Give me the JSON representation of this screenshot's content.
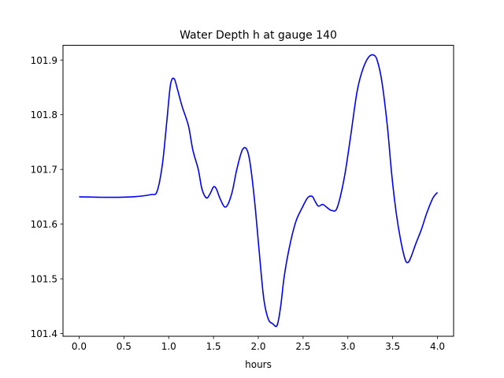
{
  "chart_data": {
    "type": "line",
    "title": "Water Depth h at gauge 140",
    "xlabel": "hours",
    "ylabel": "",
    "xlim": [
      -0.18,
      4.18
    ],
    "ylim": [
      101.395,
      101.927
    ],
    "x_ticks": [
      0.0,
      0.5,
      1.0,
      1.5,
      2.0,
      2.5,
      3.0,
      3.5,
      4.0
    ],
    "x_tick_labels": [
      "0.0",
      "0.5",
      "1.0",
      "1.5",
      "2.0",
      "2.5",
      "3.0",
      "3.5",
      "4.0"
    ],
    "y_ticks": [
      101.4,
      101.5,
      101.6,
      101.7,
      101.8,
      101.9
    ],
    "y_tick_labels": [
      "101.4",
      "101.5",
      "101.6",
      "101.7",
      "101.8",
      "101.9"
    ],
    "grid": false,
    "legend": "none",
    "series": [
      {
        "color": "#0000ff",
        "x": [
          0.0,
          0.3,
          0.6,
          0.8,
          0.87,
          0.93,
          0.98,
          1.02,
          1.06,
          1.1,
          1.15,
          1.22,
          1.27,
          1.33,
          1.37,
          1.42,
          1.46,
          1.5,
          1.53,
          1.57,
          1.62,
          1.66,
          1.71,
          1.76,
          1.82,
          1.87,
          1.91,
          1.96,
          2.01,
          2.06,
          2.11,
          2.16,
          2.21,
          2.25,
          2.29,
          2.35,
          2.42,
          2.49,
          2.55,
          2.6,
          2.63,
          2.67,
          2.72,
          2.77,
          2.82,
          2.88,
          2.96,
          3.03,
          3.1,
          3.16,
          3.23,
          3.29,
          3.33,
          3.38,
          3.44,
          3.49,
          3.54,
          3.59,
          3.64,
          3.67,
          3.7,
          3.76,
          3.82,
          3.88,
          3.95,
          4.0
        ],
        "y": [
          101.65,
          101.649,
          101.65,
          101.654,
          101.66,
          101.71,
          101.79,
          101.855,
          101.866,
          101.845,
          101.815,
          101.78,
          101.735,
          101.7,
          101.665,
          101.648,
          101.655,
          101.668,
          101.665,
          101.648,
          101.632,
          101.636,
          101.66,
          101.7,
          101.735,
          101.737,
          101.71,
          101.64,
          101.55,
          101.465,
          101.427,
          101.418,
          101.415,
          101.45,
          101.505,
          101.56,
          101.605,
          101.63,
          101.648,
          101.651,
          101.643,
          101.633,
          101.636,
          101.63,
          101.625,
          101.63,
          101.685,
          101.76,
          101.84,
          101.88,
          101.905,
          101.909,
          101.898,
          101.86,
          101.78,
          101.69,
          101.62,
          101.57,
          101.535,
          101.53,
          101.538,
          101.565,
          101.59,
          101.62,
          101.648,
          101.658
        ]
      }
    ]
  }
}
